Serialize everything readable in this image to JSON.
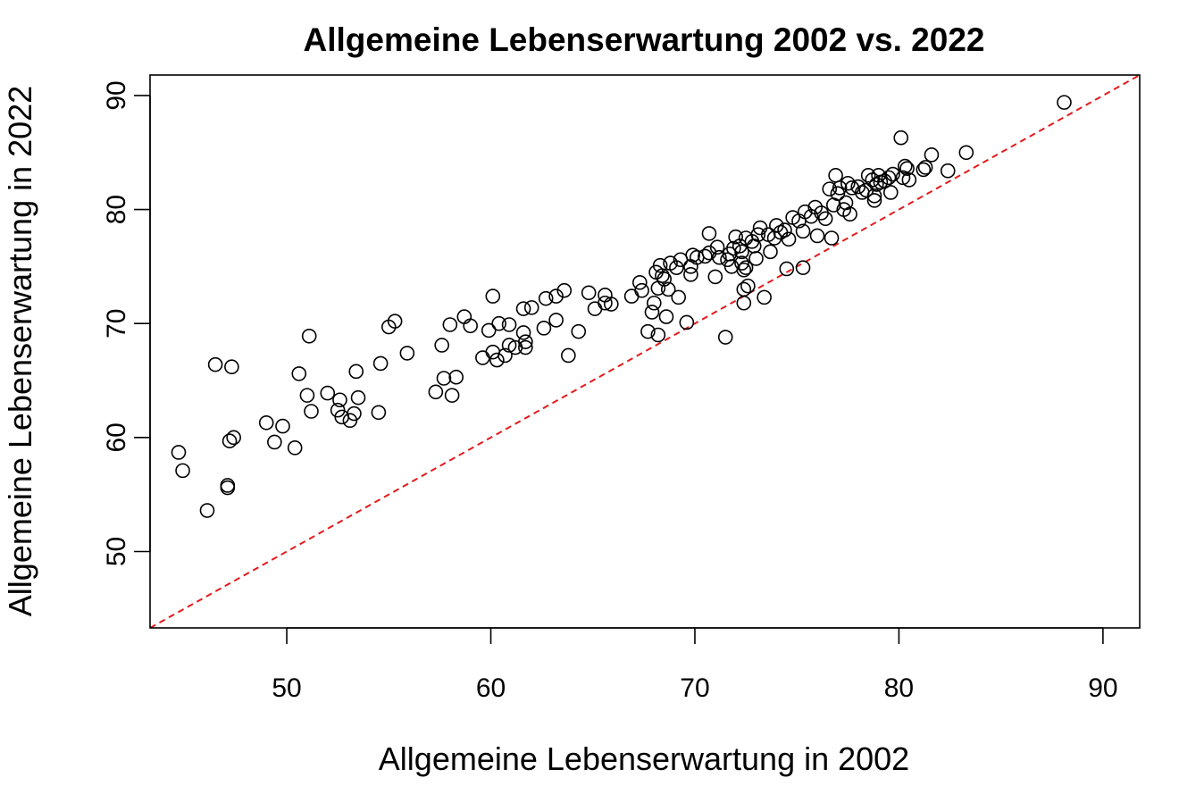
{
  "chart_data": {
    "type": "scatter",
    "title": "Allgemeine Lebenserwartung 2002 vs. 2022",
    "xlabel": "Allgemeine Lebenserwartung in 2002",
    "ylabel": "Allgemeine Lebenserwartung in 2022",
    "xlim": [
      43.3,
      91.8
    ],
    "ylim": [
      43.3,
      91.8
    ],
    "x_ticks": [
      50,
      60,
      70,
      80,
      90
    ],
    "y_ticks": [
      50,
      60,
      70,
      80,
      90
    ],
    "x_tick_labels": [
      "50",
      "60",
      "70",
      "80",
      "90"
    ],
    "y_tick_labels": [
      "50",
      "60",
      "70",
      "80",
      "90"
    ],
    "grid": false,
    "reference_line": {
      "style": "dashed",
      "color": "#e41a1c",
      "slope": 1,
      "intercept": 0
    },
    "point_style": {
      "shape": "open-circle",
      "color": "#000000"
    },
    "points": [
      [
        44.7,
        58.7
      ],
      [
        44.9,
        57.1
      ],
      [
        46.1,
        53.6
      ],
      [
        46.5,
        66.4
      ],
      [
        47.3,
        66.2
      ],
      [
        47.1,
        55.6
      ],
      [
        47.1,
        55.8
      ],
      [
        47.2,
        59.7
      ],
      [
        47.4,
        60.0
      ],
      [
        49.0,
        61.3
      ],
      [
        49.4,
        59.6
      ],
      [
        49.8,
        61.0
      ],
      [
        50.4,
        59.1
      ],
      [
        50.6,
        65.6
      ],
      [
        51.0,
        63.7
      ],
      [
        51.1,
        68.9
      ],
      [
        51.2,
        62.3
      ],
      [
        52.0,
        63.9
      ],
      [
        52.5,
        62.4
      ],
      [
        52.6,
        63.3
      ],
      [
        52.7,
        61.8
      ],
      [
        53.1,
        61.5
      ],
      [
        53.3,
        62.1
      ],
      [
        53.4,
        65.8
      ],
      [
        53.5,
        63.5
      ],
      [
        54.5,
        62.2
      ],
      [
        54.6,
        66.5
      ],
      [
        55.0,
        69.7
      ],
      [
        55.3,
        70.2
      ],
      [
        55.9,
        67.4
      ],
      [
        57.3,
        64.0
      ],
      [
        57.6,
        68.1
      ],
      [
        57.7,
        65.2
      ],
      [
        58.0,
        69.9
      ],
      [
        58.1,
        63.7
      ],
      [
        58.3,
        65.3
      ],
      [
        58.7,
        70.6
      ],
      [
        59.0,
        69.8
      ],
      [
        59.6,
        67.0
      ],
      [
        59.9,
        69.4
      ],
      [
        60.1,
        72.4
      ],
      [
        60.1,
        67.5
      ],
      [
        60.3,
        66.8
      ],
      [
        60.4,
        70.0
      ],
      [
        60.7,
        67.2
      ],
      [
        60.9,
        69.9
      ],
      [
        60.9,
        68.1
      ],
      [
        61.2,
        67.9
      ],
      [
        61.6,
        71.3
      ],
      [
        61.6,
        69.2
      ],
      [
        61.7,
        67.9
      ],
      [
        61.7,
        68.4
      ],
      [
        62.0,
        71.4
      ],
      [
        62.6,
        69.6
      ],
      [
        62.7,
        72.2
      ],
      [
        63.2,
        70.3
      ],
      [
        63.2,
        72.4
      ],
      [
        63.6,
        72.9
      ],
      [
        63.8,
        67.2
      ],
      [
        64.3,
        69.3
      ],
      [
        64.8,
        72.7
      ],
      [
        65.1,
        71.3
      ],
      [
        65.6,
        72.5
      ],
      [
        65.6,
        71.8
      ],
      [
        65.9,
        71.7
      ],
      [
        66.9,
        72.4
      ],
      [
        67.3,
        73.6
      ],
      [
        67.4,
        72.9
      ],
      [
        67.7,
        69.3
      ],
      [
        67.9,
        71.0
      ],
      [
        68.0,
        71.8
      ],
      [
        68.1,
        74.5
      ],
      [
        68.2,
        73.1
      ],
      [
        68.2,
        69.0
      ],
      [
        68.3,
        75.1
      ],
      [
        68.4,
        74.2
      ],
      [
        68.5,
        73.9
      ],
      [
        68.6,
        70.6
      ],
      [
        68.7,
        73.0
      ],
      [
        68.8,
        75.3
      ],
      [
        69.1,
        74.9
      ],
      [
        69.2,
        72.3
      ],
      [
        69.3,
        75.6
      ],
      [
        69.6,
        70.1
      ],
      [
        69.8,
        75.0
      ],
      [
        69.8,
        74.3
      ],
      [
        69.9,
        76.0
      ],
      [
        70.1,
        75.8
      ],
      [
        70.5,
        75.9
      ],
      [
        70.7,
        76.2
      ],
      [
        70.7,
        77.9
      ],
      [
        71.0,
        74.1
      ],
      [
        71.1,
        76.7
      ],
      [
        71.2,
        75.8
      ],
      [
        71.5,
        68.8
      ],
      [
        71.6,
        75.6
      ],
      [
        71.7,
        76.1
      ],
      [
        71.8,
        75.0
      ],
      [
        71.9,
        76.6
      ],
      [
        72.0,
        77.6
      ],
      [
        72.2,
        76.8
      ],
      [
        72.3,
        75.3
      ],
      [
        72.3,
        76.3
      ],
      [
        72.4,
        74.7
      ],
      [
        72.4,
        73.0
      ],
      [
        72.4,
        71.8
      ],
      [
        72.5,
        74.9
      ],
      [
        72.5,
        77.5
      ],
      [
        72.6,
        73.3
      ],
      [
        72.8,
        77.2
      ],
      [
        72.9,
        76.8
      ],
      [
        73.0,
        75.7
      ],
      [
        73.1,
        77.8
      ],
      [
        73.2,
        78.4
      ],
      [
        73.4,
        72.3
      ],
      [
        73.6,
        77.8
      ],
      [
        73.7,
        76.3
      ],
      [
        73.9,
        77.5
      ],
      [
        74.0,
        78.6
      ],
      [
        74.2,
        78.0
      ],
      [
        74.4,
        78.2
      ],
      [
        74.5,
        74.8
      ],
      [
        74.6,
        77.4
      ],
      [
        74.8,
        79.3
      ],
      [
        75.1,
        79.0
      ],
      [
        75.3,
        74.9
      ],
      [
        75.3,
        78.1
      ],
      [
        75.4,
        79.8
      ],
      [
        75.7,
        79.4
      ],
      [
        75.9,
        80.2
      ],
      [
        76.0,
        77.7
      ],
      [
        76.2,
        79.7
      ],
      [
        76.4,
        79.2
      ],
      [
        76.6,
        81.8
      ],
      [
        76.7,
        77.5
      ],
      [
        76.8,
        80.4
      ],
      [
        76.9,
        83.0
      ],
      [
        77.0,
        81.4
      ],
      [
        77.1,
        81.9
      ],
      [
        77.3,
        80.0
      ],
      [
        77.4,
        80.6
      ],
      [
        77.5,
        82.3
      ],
      [
        77.6,
        79.6
      ],
      [
        77.7,
        81.9
      ],
      [
        78.0,
        82.0
      ],
      [
        78.2,
        81.5
      ],
      [
        78.4,
        81.7
      ],
      [
        78.5,
        83.0
      ],
      [
        78.7,
        82.6
      ],
      [
        78.8,
        81.2
      ],
      [
        78.8,
        80.8
      ],
      [
        78.9,
        82.2
      ],
      [
        79.0,
        83.0
      ],
      [
        79.1,
        82.4
      ],
      [
        79.3,
        82.5
      ],
      [
        79.5,
        82.8
      ],
      [
        79.6,
        81.5
      ],
      [
        79.7,
        83.1
      ],
      [
        80.1,
        86.3
      ],
      [
        80.2,
        82.8
      ],
      [
        80.3,
        83.8
      ],
      [
        80.4,
        83.6
      ],
      [
        80.5,
        82.6
      ],
      [
        81.2,
        83.5
      ],
      [
        81.3,
        83.7
      ],
      [
        81.6,
        84.8
      ],
      [
        82.4,
        83.4
      ],
      [
        83.3,
        85.0
      ],
      [
        88.1,
        89.4
      ]
    ]
  }
}
